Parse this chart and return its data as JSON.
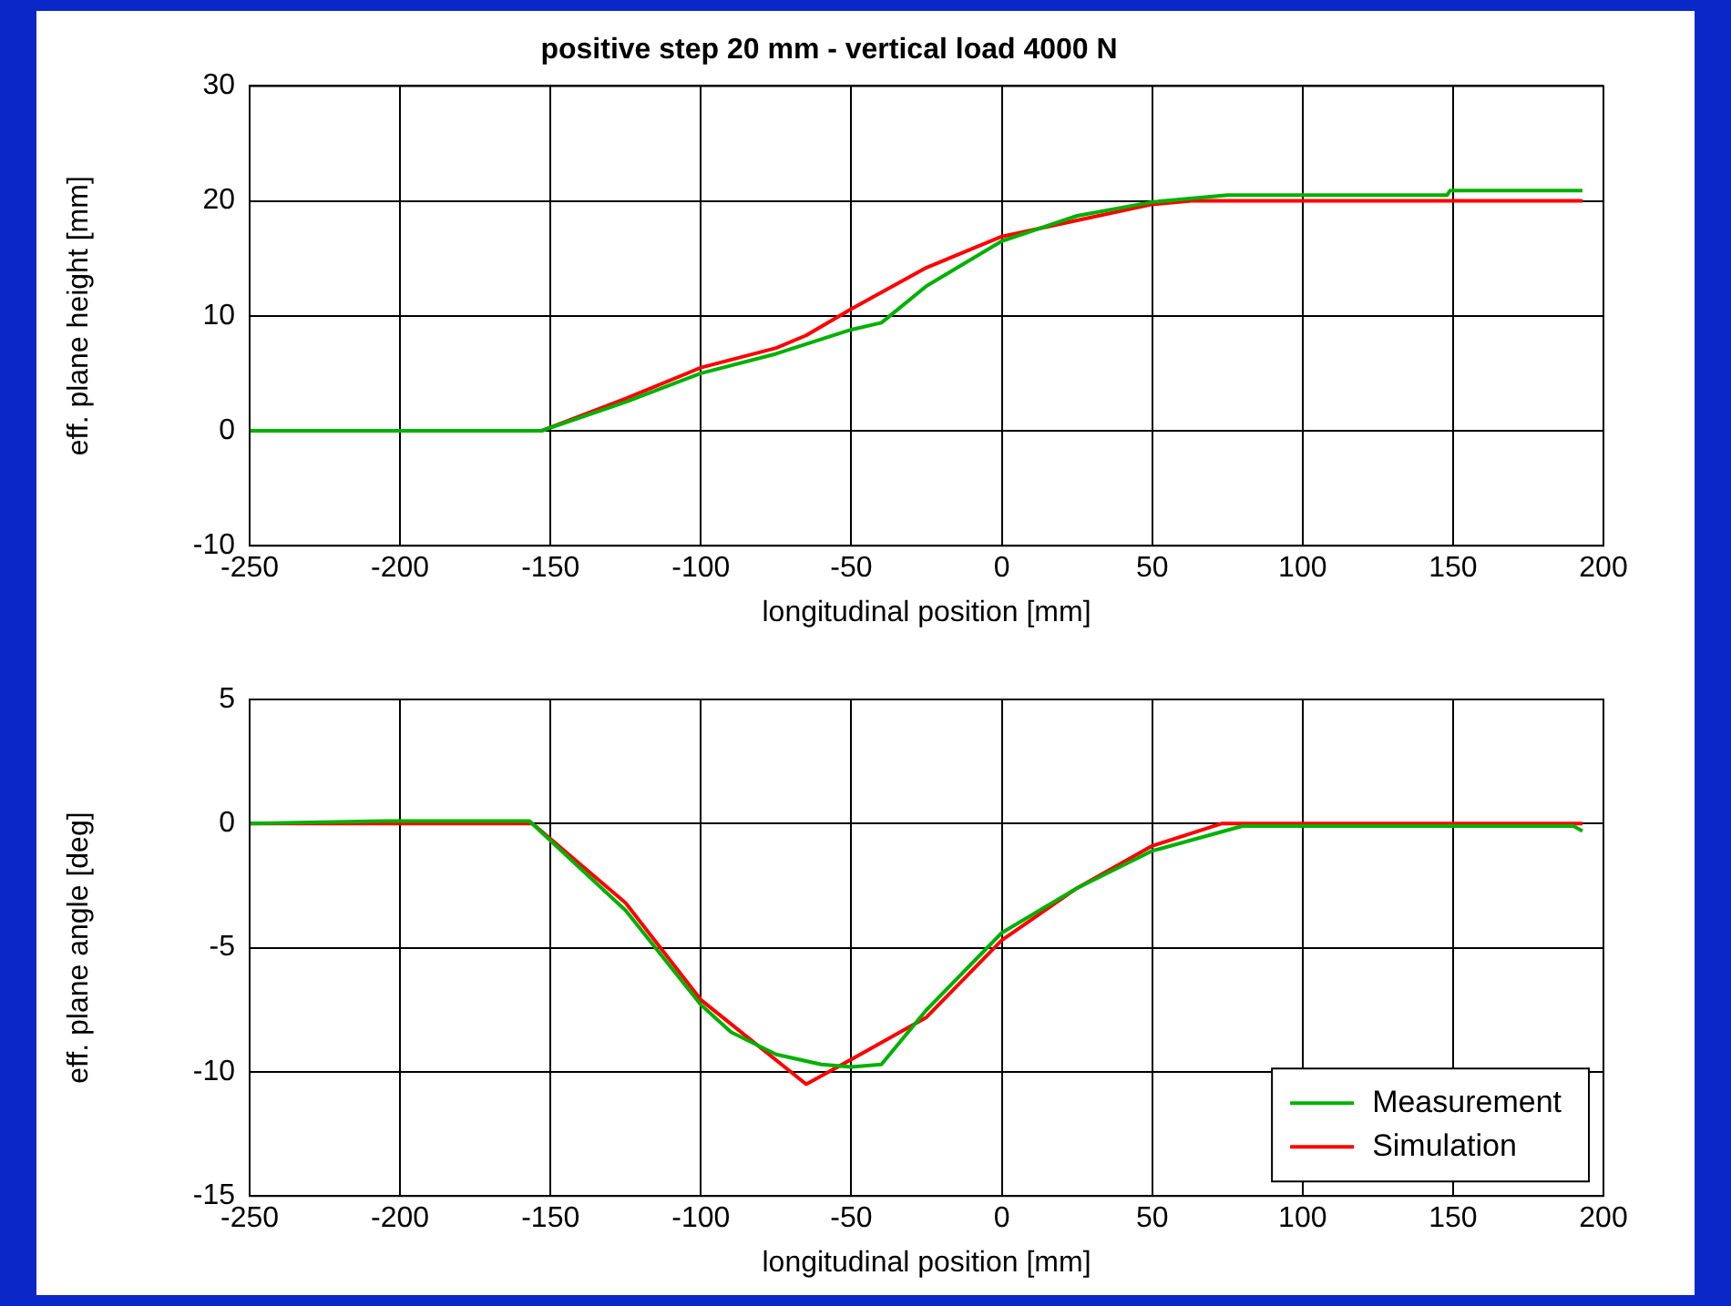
{
  "chart_data": [
    {
      "type": "line",
      "title": "positive step 20 mm - vertical load 4000 N",
      "xlabel": "longitudinal position [mm]",
      "ylabel": "eff. plane height [mm]",
      "xlim": [
        -250,
        200
      ],
      "xticks": [
        -250,
        -200,
        -150,
        -100,
        -50,
        0,
        50,
        100,
        150,
        200
      ],
      "ylim": [
        -10,
        30
      ],
      "yticks": [
        -10,
        0,
        10,
        20,
        30
      ],
      "grid": true,
      "legend": false,
      "line_style": "solid",
      "marker": "none",
      "series": [
        {
          "color": "#00b000",
          "x": [
            -250,
            -153,
            -125,
            -100,
            -75,
            -50,
            -40,
            -25,
            0,
            25,
            50,
            75,
            148,
            149,
            193
          ],
          "values": [
            0,
            0,
            2.5,
            5.0,
            6.7,
            8.8,
            9.4,
            12.6,
            16.5,
            18.7,
            19.9,
            20.5,
            20.5,
            20.9,
            20.9
          ]
        },
        {
          "color": "#ff0000",
          "x": [
            -250,
            -153,
            -125,
            -100,
            -75,
            -65,
            -50,
            -25,
            0,
            25,
            50,
            63,
            193
          ],
          "values": [
            0,
            0,
            2.8,
            5.5,
            7.2,
            8.3,
            10.6,
            14.2,
            16.9,
            18.3,
            19.7,
            20,
            20
          ]
        }
      ]
    },
    {
      "type": "line",
      "xlabel": "longitudinal position [mm]",
      "ylabel": "eff. plane angle [deg]",
      "xlim": [
        -250,
        200
      ],
      "xticks": [
        -250,
        -200,
        -150,
        -100,
        -50,
        0,
        50,
        100,
        150,
        200
      ],
      "ylim": [
        -15,
        5
      ],
      "yticks": [
        -15,
        -10,
        -5,
        0,
        5
      ],
      "grid": true,
      "legend": "bottom right",
      "line_style": "solid",
      "marker": "none",
      "series": [
        {
          "name": "Measurement",
          "color": "#00b000",
          "x": [
            -250,
            -205,
            -157,
            -125,
            -100,
            -90,
            -75,
            -60,
            -50,
            -40,
            -25,
            0,
            25,
            50,
            80,
            190,
            193
          ],
          "values": [
            0,
            0.1,
            0.1,
            -3.5,
            -7.3,
            -8.4,
            -9.3,
            -9.7,
            -9.8,
            -9.7,
            -7.5,
            -4.4,
            -2.6,
            -1.1,
            -0.1,
            -0.1,
            -0.3
          ]
        },
        {
          "name": "Simulation",
          "color": "#ff0000",
          "x": [
            -250,
            -156,
            -125,
            -100,
            -65,
            -50,
            -25,
            0,
            25,
            50,
            73,
            193
          ],
          "values": [
            0,
            0,
            -3.2,
            -7.1,
            -10.5,
            -9.5,
            -7.8,
            -4.7,
            -2.6,
            -0.9,
            0,
            0
          ]
        }
      ]
    }
  ]
}
